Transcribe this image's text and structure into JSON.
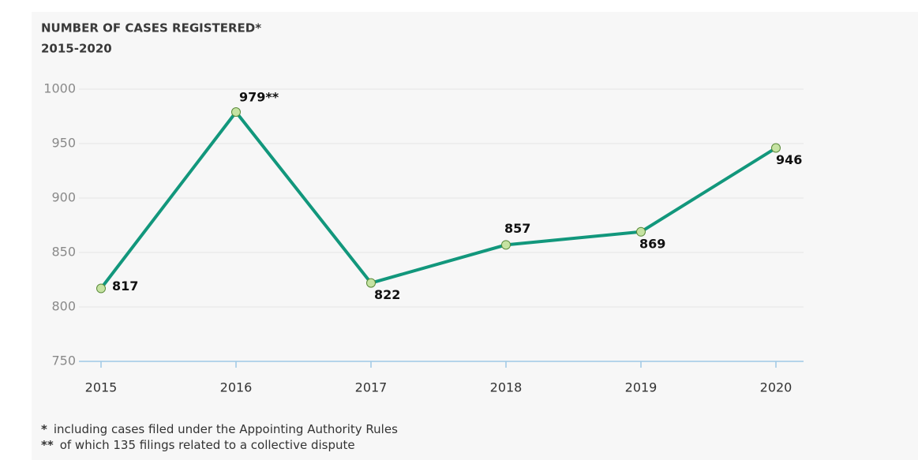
{
  "chart_data": {
    "type": "line",
    "title": "NUMBER OF CASES REGISTERED*",
    "subtitle": "2015-2020",
    "categories": [
      "2015",
      "2016",
      "2017",
      "2018",
      "2019",
      "2020"
    ],
    "series": [
      {
        "name": "Cases registered",
        "color": "#12977c",
        "values": [
          817,
          979,
          822,
          857,
          869,
          946
        ],
        "value_labels": [
          "817",
          "979**",
          "822",
          "857",
          "869",
          "946"
        ]
      }
    ],
    "ylim": [
      750,
      1000
    ],
    "yticks": [
      750,
      800,
      850,
      900,
      950,
      1000
    ],
    "grid": true,
    "footnotes": [
      {
        "marker": "*",
        "text": "including cases filed under the Appointing Authority Rules"
      },
      {
        "marker": "**",
        "text": "of which 135 filings related to a collective dispute"
      }
    ]
  }
}
